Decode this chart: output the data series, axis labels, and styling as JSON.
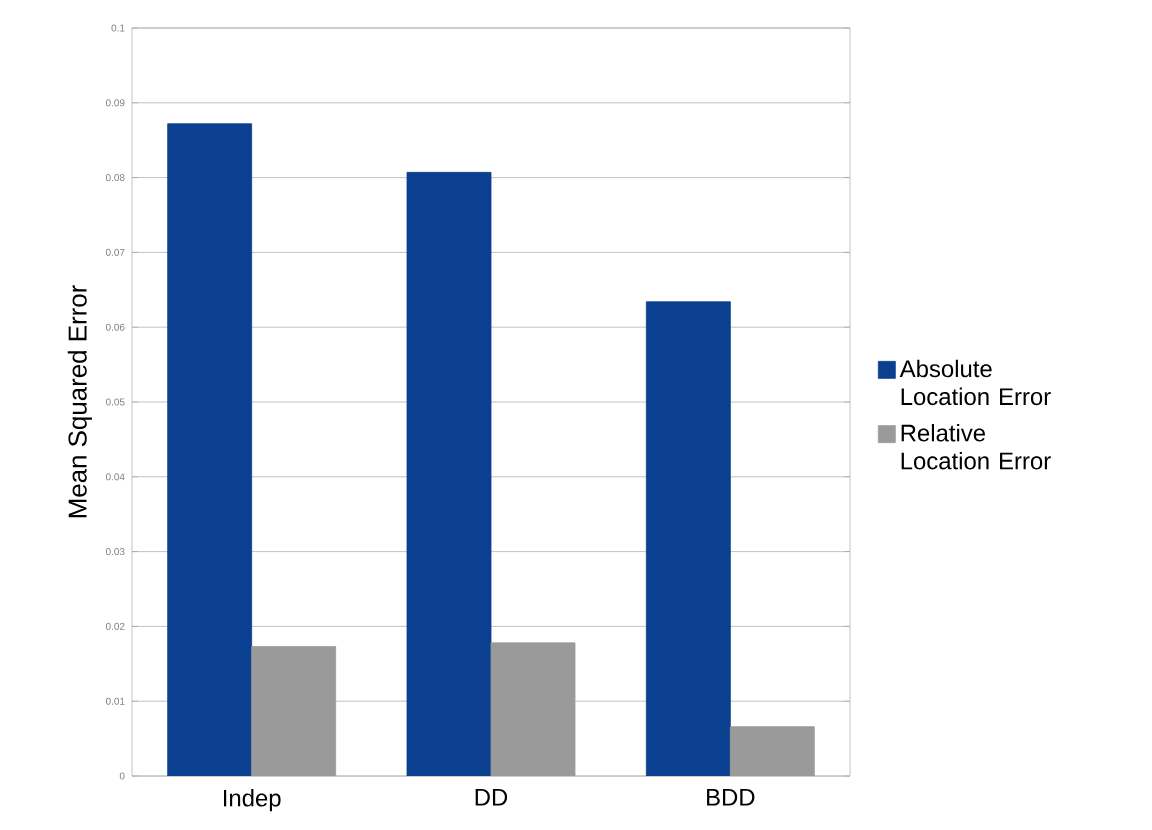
{
  "chart_data": {
    "type": "bar",
    "ylabel": "Mean Squared Error",
    "categories": [
      "Indep",
      "DD",
      "BDD"
    ],
    "series": [
      {
        "name": "Absolute Location Error",
        "color": "#0b3f8f",
        "values": [
          0.0872,
          0.0807,
          0.0634
        ]
      },
      {
        "name": "Relative Location Error",
        "color": "#9a9a9a",
        "values": [
          0.0173,
          0.0178,
          0.0066
        ]
      }
    ],
    "ylim": [
      0,
      0.1
    ],
    "yticks": [
      0,
      0.01,
      0.02,
      0.03,
      0.04,
      0.05,
      0.06,
      0.07,
      0.08,
      0.09,
      0.1
    ],
    "grid": "y",
    "legend": "right"
  }
}
